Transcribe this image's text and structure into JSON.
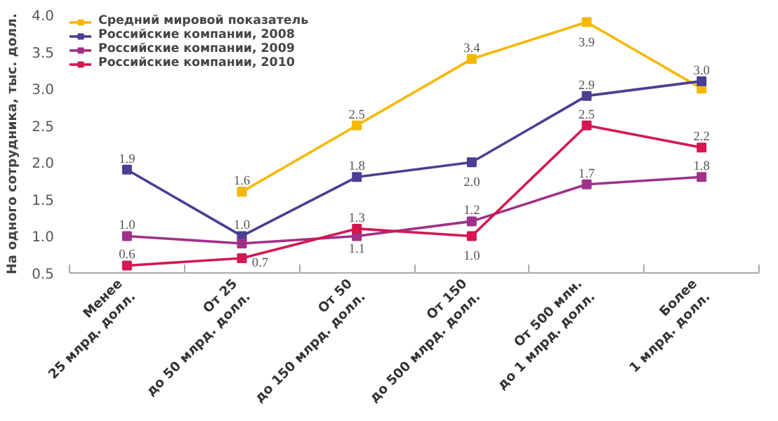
{
  "chart_data": {
    "type": "line",
    "ylabel": "На одного сотрудника, тыс. долл.",
    "categories": [
      "Менее\n25 млрд. долл.",
      "От 25\nдо 50 млрд. долл.",
      "От 50\nдо 150 млрд. долл.",
      "От 150\nдо 500 млрд. долл.",
      "От 500 млн.\nдо 1 млрд. долл.",
      "Более\n1 млрд. долл."
    ],
    "series": [
      {
        "name": "Средний мировой показатель",
        "color": "#f5b800",
        "values": [
          null,
          1.6,
          2.5,
          3.4,
          3.9,
          3.0
        ],
        "value_labels": [
          null,
          "1.6",
          "2.5",
          "3.4",
          "3.9",
          "3.0"
        ]
      },
      {
        "name": "Российские компании, 2008",
        "color": "#4a3f93",
        "values": [
          1.9,
          1.0,
          1.8,
          2.0,
          2.9,
          3.1
        ],
        "value_labels": [
          "1.9",
          "1.0",
          "1.8",
          "2.0",
          "2.9",
          null
        ]
      },
      {
        "name": "Российские компании, 2009",
        "color": "#a0308a",
        "values": [
          1.0,
          0.9,
          1.0,
          1.2,
          1.7,
          1.8
        ],
        "value_labels": [
          "1.0",
          null,
          null,
          "1.2",
          "1.7",
          "1.8"
        ]
      },
      {
        "name": "Российские компании, 2010",
        "color": "#d4174f",
        "values": [
          0.6,
          0.7,
          1.1,
          1.0,
          2.5,
          2.2
        ],
        "value_labels": [
          "0.6",
          "0.7",
          "1.1",
          "1.0",
          "2.5",
          "2.2"
        ]
      }
    ],
    "annotations": [
      {
        "text": "1.3",
        "x": "От 50\nдо 150 млрд. долл.",
        "y": 1.0
      }
    ],
    "ylim": [
      0.5,
      4.0
    ],
    "yticks": [
      {
        "value": 0.5,
        "label": "0.5"
      },
      {
        "value": 1.0,
        "label": "1.0"
      },
      {
        "value": 1.5,
        "label": "1.5"
      },
      {
        "value": 2.0,
        "label": "2.0"
      },
      {
        "value": 2.5,
        "label": "2.5"
      },
      {
        "value": 3.0,
        "label": "3.0"
      },
      {
        "value": 3.5,
        "label": "3.5"
      },
      {
        "value": 4.0,
        "label": "4.0"
      }
    ],
    "grid": false,
    "legend": "top left",
    "marker": "square",
    "line_style": "solid"
  }
}
